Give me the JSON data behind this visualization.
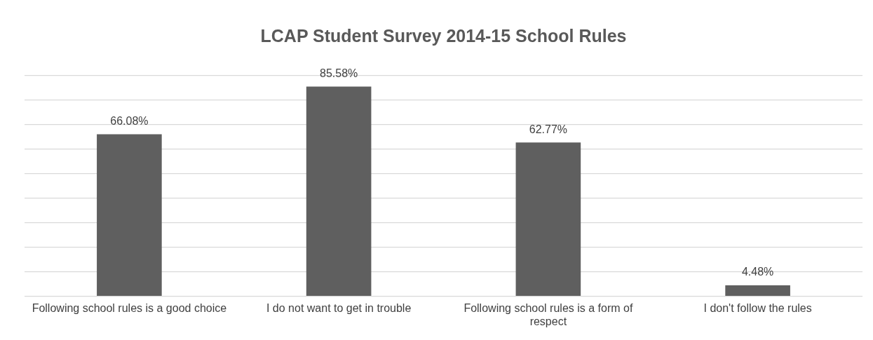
{
  "chart_data": {
    "type": "bar",
    "title": "LCAP Student Survey 2014-15 School Rules",
    "categories": [
      "Following school rules is a good choice",
      "I do not want to get in trouble",
      "Following school rules is a form of respect",
      "I don't follow the rules"
    ],
    "values": [
      66.08,
      85.58,
      62.77,
      4.48
    ],
    "value_labels": [
      "66.08%",
      "85.58%",
      "62.77%",
      "4.48%"
    ],
    "color": "#5f5f5f",
    "ylim": [
      0,
      90
    ],
    "yticks": [
      {
        "value": 0,
        "label": null
      },
      {
        "value": 10,
        "label": null
      },
      {
        "value": 20,
        "label": null
      },
      {
        "value": 30,
        "label": null
      },
      {
        "value": 40,
        "label": null
      },
      {
        "value": 50,
        "label": null
      },
      {
        "value": 60,
        "label": null
      },
      {
        "value": 70,
        "label": null
      },
      {
        "value": 80,
        "label": null
      },
      {
        "value": 90,
        "label": null
      }
    ],
    "grid": "y",
    "tick_labels": "x",
    "legend": false
  }
}
